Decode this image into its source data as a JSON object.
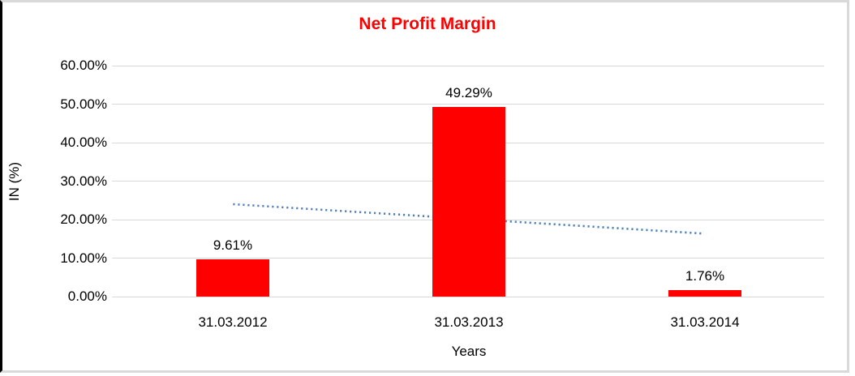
{
  "chart_data": {
    "type": "bar",
    "title": "Net Profit Margin",
    "title_color": "#ff0000",
    "xlabel": "Years",
    "ylabel": "IN (%)",
    "categories": [
      "31.03.2012",
      "31.03.2013",
      "31.03.2014"
    ],
    "values": [
      9.61,
      49.29,
      1.76
    ],
    "data_labels": [
      "9.61%",
      "49.29%",
      "1.76%"
    ],
    "bar_color": "#ff0000",
    "ylim": [
      0,
      60
    ],
    "ytick_step": 10,
    "ytick_labels": [
      "0.00%",
      "10.00%",
      "20.00%",
      "30.00%",
      "40.00%",
      "50.00%",
      "60.00%"
    ],
    "grid": true,
    "gridline_color": "#d9d9d9",
    "legend": "none",
    "trendline": {
      "style": "dotted",
      "color": "#4f81bd",
      "start_value": 24.0,
      "end_value": 16.4
    }
  }
}
